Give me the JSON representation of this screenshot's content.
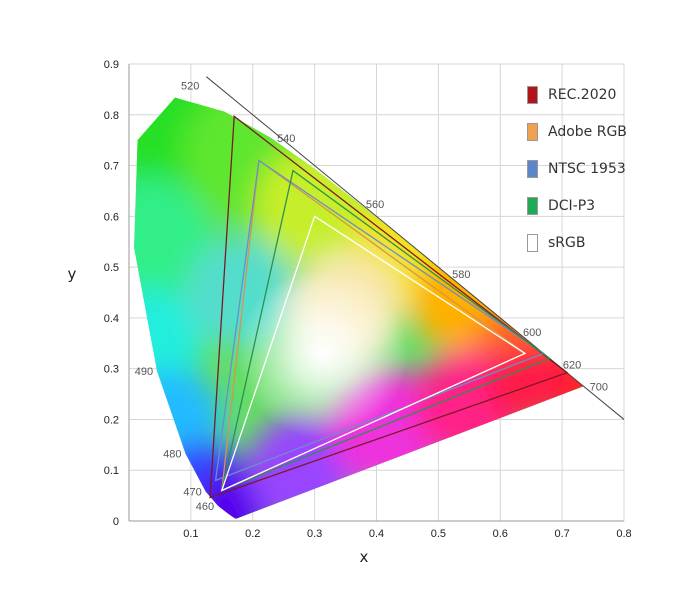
{
  "chart_data": {
    "type": "scatter",
    "title": "",
    "xlabel": "x",
    "ylabel": "y",
    "xlim": [
      0,
      0.8
    ],
    "ylim": [
      0,
      0.9
    ],
    "xticks": [
      "0.1",
      "0.2",
      "0.3",
      "0.4",
      "0.5",
      "0.6",
      "0.7",
      "0.8"
    ],
    "yticks": [
      "0",
      "0.1",
      "0.2",
      "0.3",
      "0.4",
      "0.5",
      "0.6",
      "0.7",
      "0.8",
      "0.9"
    ],
    "grid": true,
    "legend_position": "top-right",
    "spectral_locus": [
      [
        0.1741,
        0.005
      ],
      [
        0.1738,
        0.0049
      ],
      [
        0.1736,
        0.0049
      ],
      [
        0.1733,
        0.0048
      ],
      [
        0.1726,
        0.0048
      ],
      [
        0.1714,
        0.0051
      ],
      [
        0.1689,
        0.0069
      ],
      [
        0.1644,
        0.0109
      ],
      [
        0.1566,
        0.0177
      ],
      [
        0.144,
        0.0297
      ],
      [
        0.1241,
        0.0578
      ],
      [
        0.0913,
        0.1327
      ],
      [
        0.0454,
        0.295
      ],
      [
        0.0082,
        0.5384
      ],
      [
        0.0139,
        0.7502
      ],
      [
        0.0743,
        0.8338
      ],
      [
        0.1547,
        0.8059
      ],
      [
        0.2296,
        0.7543
      ],
      [
        0.3016,
        0.6923
      ],
      [
        0.3731,
        0.6245
      ],
      [
        0.4441,
        0.5547
      ],
      [
        0.5125,
        0.4866
      ],
      [
        0.5752,
        0.4242
      ],
      [
        0.627,
        0.3725
      ],
      [
        0.6658,
        0.334
      ],
      [
        0.6915,
        0.3083
      ],
      [
        0.7079,
        0.292
      ],
      [
        0.719,
        0.2809
      ],
      [
        0.726,
        0.274
      ],
      [
        0.73,
        0.27
      ],
      [
        0.732,
        0.268
      ],
      [
        0.7347,
        0.2653
      ]
    ],
    "wavelength_labels": [
      {
        "label": "460",
        "x": 0.144,
        "y": 0.0297
      },
      {
        "label": "470",
        "x": 0.1241,
        "y": 0.0578
      },
      {
        "label": "480",
        "x": 0.0913,
        "y": 0.1327
      },
      {
        "label": "490",
        "x": 0.0454,
        "y": 0.295
      },
      {
        "label": "520",
        "x": 0.0743,
        "y": 0.8338
      },
      {
        "label": "540",
        "x": 0.2296,
        "y": 0.7543
      },
      {
        "label": "560",
        "x": 0.3731,
        "y": 0.6245
      },
      {
        "label": "580",
        "x": 0.5125,
        "y": 0.4866
      },
      {
        "label": "600",
        "x": 0.627,
        "y": 0.3725
      },
      {
        "label": "620",
        "x": 0.6915,
        "y": 0.3083
      },
      {
        "label": "700",
        "x": 0.7347,
        "y": 0.2653
      }
    ],
    "series": [
      {
        "name": "REC.2020",
        "color": "#b0151a",
        "stroke": "#7a1a28",
        "points": [
          [
            0.708,
            0.292
          ],
          [
            0.17,
            0.797
          ],
          [
            0.131,
            0.046
          ]
        ]
      },
      {
        "name": "Adobe RGB",
        "color": "#f0a050",
        "stroke": "#d4954e",
        "points": [
          [
            0.64,
            0.33
          ],
          [
            0.21,
            0.71
          ],
          [
            0.15,
            0.06
          ]
        ]
      },
      {
        "name": "NTSC 1953",
        "color": "#5b86c9",
        "stroke": "#6a8fc9",
        "points": [
          [
            0.67,
            0.33
          ],
          [
            0.21,
            0.71
          ],
          [
            0.14,
            0.08
          ]
        ]
      },
      {
        "name": "DCI-P3",
        "color": "#1faa55",
        "stroke": "#2f8f4f",
        "points": [
          [
            0.68,
            0.32
          ],
          [
            0.265,
            0.69
          ],
          [
            0.15,
            0.06
          ]
        ]
      },
      {
        "name": "sRGB",
        "color": "#ffffff",
        "stroke": "#ffffff",
        "points": [
          [
            0.64,
            0.33
          ],
          [
            0.3,
            0.6
          ],
          [
            0.15,
            0.06
          ]
        ]
      }
    ]
  }
}
